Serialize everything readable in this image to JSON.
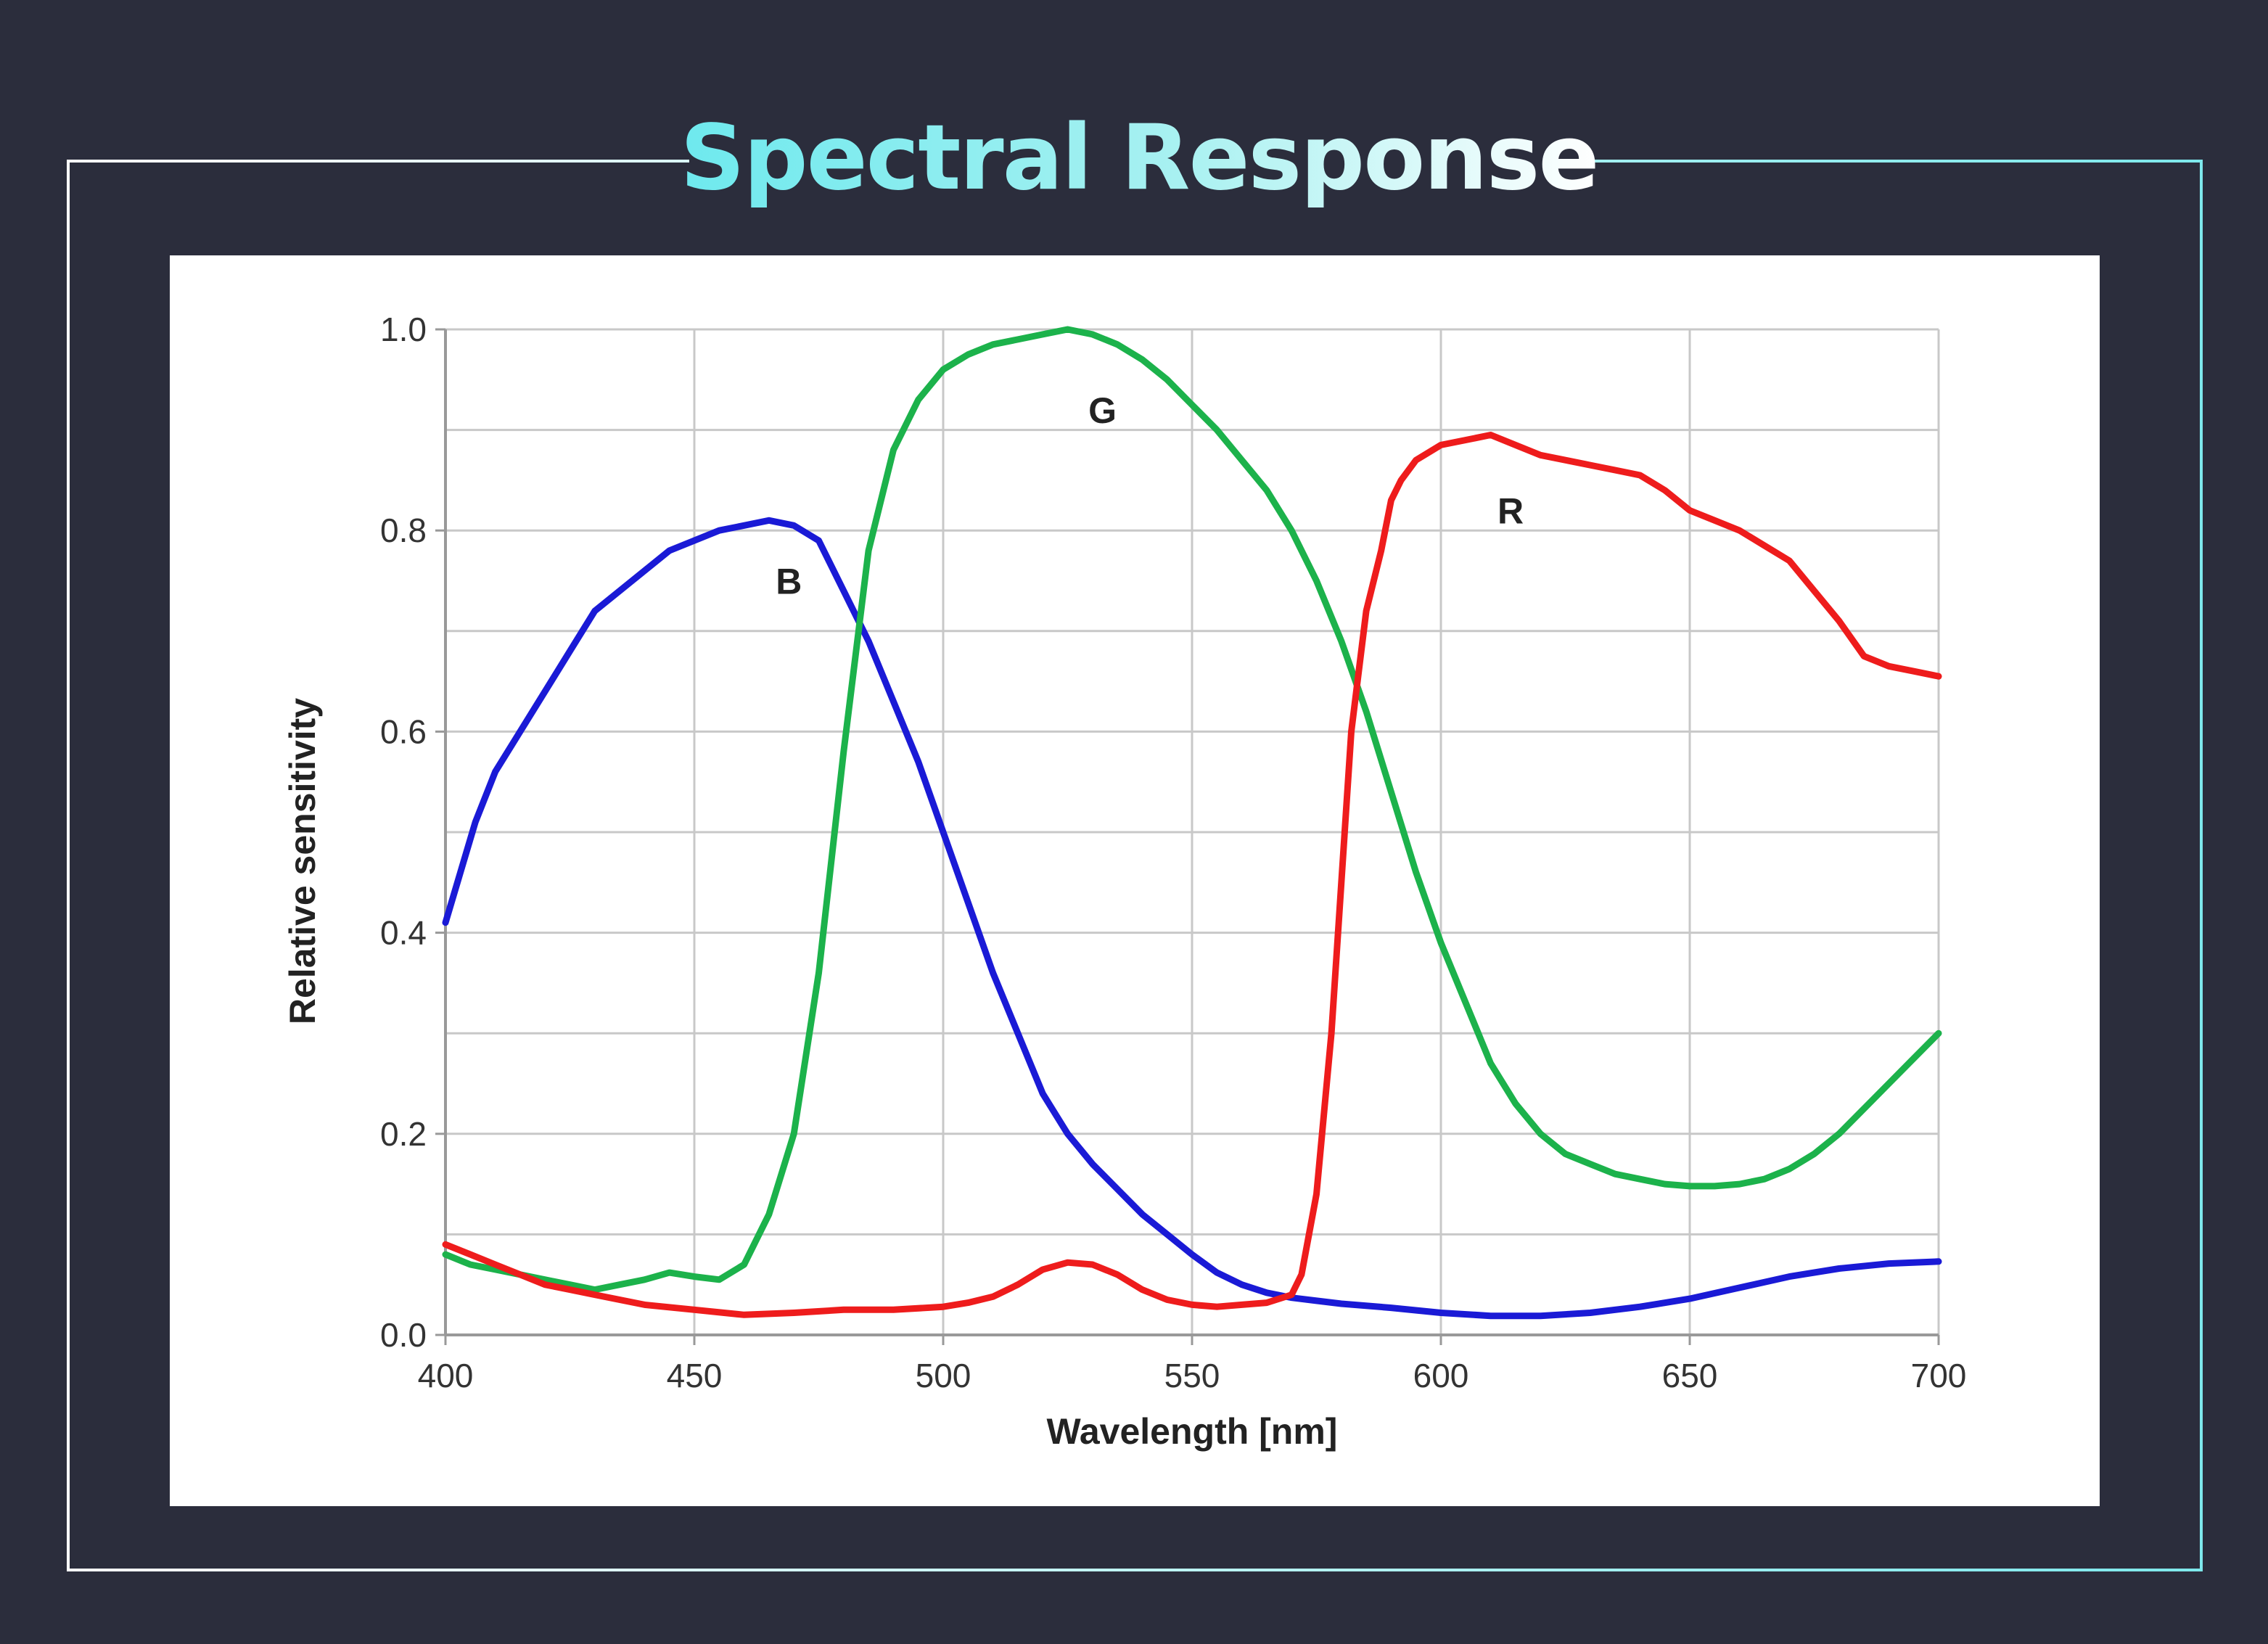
{
  "title": "Spectral Response",
  "colors": {
    "background": "#2b2d3c",
    "title_accent": "#6ee9ee",
    "frame": "#bff4f4",
    "plot_background": "#ffffff",
    "grid": "#c8c8c8"
  },
  "chart_data": {
    "type": "line",
    "title": "",
    "xlabel": "Wavelength [nm]",
    "ylabel": "Relative sensitivity",
    "xlim": [
      400,
      700
    ],
    "ylim": [
      0,
      1.0
    ],
    "x_ticks": [
      400,
      450,
      500,
      550,
      600,
      650,
      700
    ],
    "x_tick_labels": [
      "400",
      "450",
      "500",
      "550",
      "600",
      "650",
      "700"
    ],
    "y_ticks": [
      0.0,
      0.2,
      0.4,
      0.6,
      0.8,
      1.0
    ],
    "y_tick_labels": [
      "0.0",
      "0.2",
      "0.4",
      "0.6",
      "0.8",
      "1.0"
    ],
    "y_gridlines": [
      0.0,
      0.1,
      0.2,
      0.3,
      0.4,
      0.5,
      0.6,
      0.7,
      0.8,
      0.9,
      1.0
    ],
    "grid": true,
    "legend": "none",
    "series": [
      {
        "name": "B",
        "color": "#1a1ad6",
        "label_at": [
          469,
          0.75
        ],
        "x": [
          400,
          403,
          406,
          410,
          415,
          420,
          425,
          430,
          435,
          440,
          445,
          450,
          455,
          460,
          465,
          470,
          475,
          480,
          485,
          490,
          495,
          500,
          505,
          510,
          515,
          520,
          525,
          530,
          535,
          540,
          545,
          550,
          555,
          560,
          565,
          570,
          575,
          580,
          590,
          600,
          610,
          620,
          630,
          640,
          650,
          660,
          670,
          680,
          690,
          700
        ],
        "y": [
          0.41,
          0.46,
          0.51,
          0.56,
          0.6,
          0.64,
          0.68,
          0.72,
          0.74,
          0.76,
          0.78,
          0.79,
          0.8,
          0.805,
          0.81,
          0.805,
          0.79,
          0.74,
          0.69,
          0.63,
          0.57,
          0.5,
          0.43,
          0.36,
          0.3,
          0.24,
          0.2,
          0.17,
          0.145,
          0.12,
          0.1,
          0.08,
          0.062,
          0.05,
          0.042,
          0.037,
          0.034,
          0.031,
          0.027,
          0.022,
          0.019,
          0.019,
          0.022,
          0.028,
          0.036,
          0.047,
          0.058,
          0.066,
          0.071,
          0.073
        ]
      },
      {
        "name": "G",
        "color": "#1cb24b",
        "label_at": [
          532,
          0.92
        ],
        "x": [
          400,
          405,
          410,
          415,
          420,
          425,
          430,
          435,
          440,
          445,
          450,
          455,
          460,
          465,
          470,
          475,
          480,
          485,
          490,
          495,
          500,
          505,
          510,
          515,
          520,
          525,
          530,
          535,
          540,
          545,
          550,
          555,
          560,
          565,
          570,
          575,
          580,
          585,
          590,
          595,
          600,
          605,
          610,
          615,
          620,
          625,
          630,
          635,
          640,
          645,
          650,
          655,
          660,
          665,
          670,
          675,
          680,
          685,
          690,
          695,
          700
        ],
        "y": [
          0.08,
          0.07,
          0.065,
          0.06,
          0.055,
          0.05,
          0.045,
          0.05,
          0.055,
          0.062,
          0.058,
          0.055,
          0.07,
          0.12,
          0.2,
          0.36,
          0.58,
          0.78,
          0.88,
          0.93,
          0.96,
          0.975,
          0.985,
          0.99,
          0.995,
          1.0,
          0.995,
          0.985,
          0.97,
          0.95,
          0.925,
          0.9,
          0.87,
          0.84,
          0.8,
          0.75,
          0.69,
          0.62,
          0.54,
          0.46,
          0.39,
          0.33,
          0.27,
          0.23,
          0.2,
          0.18,
          0.17,
          0.16,
          0.155,
          0.15,
          0.148,
          0.148,
          0.15,
          0.155,
          0.165,
          0.18,
          0.2,
          0.225,
          0.25,
          0.275,
          0.3
        ]
      },
      {
        "name": "R",
        "color": "#ee1c1c",
        "label_at": [
          614,
          0.82
        ],
        "x": [
          400,
          405,
          410,
          415,
          420,
          425,
          430,
          440,
          450,
          460,
          470,
          480,
          490,
          500,
          505,
          510,
          515,
          520,
          525,
          530,
          535,
          540,
          545,
          550,
          555,
          560,
          565,
          570,
          572,
          575,
          578,
          580,
          582,
          585,
          588,
          590,
          592,
          595,
          600,
          605,
          610,
          615,
          620,
          625,
          630,
          635,
          640,
          645,
          650,
          655,
          660,
          665,
          670,
          675,
          680,
          685,
          690,
          695,
          700
        ],
        "y": [
          0.09,
          0.08,
          0.07,
          0.06,
          0.05,
          0.045,
          0.04,
          0.03,
          0.025,
          0.02,
          0.022,
          0.025,
          0.025,
          0.028,
          0.032,
          0.038,
          0.05,
          0.065,
          0.072,
          0.07,
          0.06,
          0.045,
          0.035,
          0.03,
          0.028,
          0.03,
          0.032,
          0.04,
          0.06,
          0.14,
          0.3,
          0.45,
          0.6,
          0.72,
          0.78,
          0.83,
          0.85,
          0.87,
          0.885,
          0.89,
          0.895,
          0.885,
          0.875,
          0.87,
          0.865,
          0.86,
          0.855,
          0.84,
          0.82,
          0.81,
          0.8,
          0.785,
          0.77,
          0.74,
          0.71,
          0.675,
          0.665,
          0.66,
          0.655
        ]
      }
    ]
  }
}
